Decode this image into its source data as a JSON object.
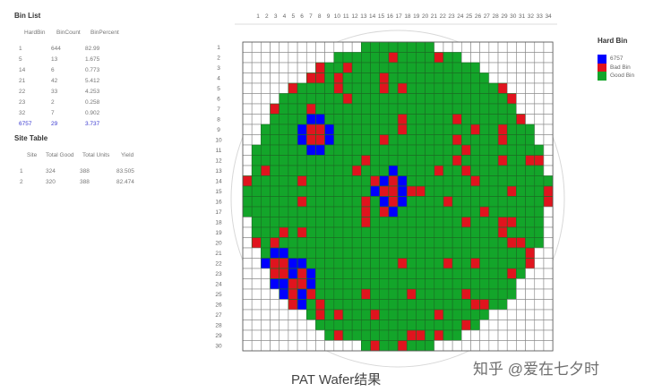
{
  "bin_list": {
    "title": "Bin List",
    "headers": [
      "HardBin",
      "BinCount",
      "BinPercent"
    ],
    "rows": [
      [
        "1",
        "644",
        "82.99"
      ],
      [
        "5",
        "13",
        "1.675"
      ],
      [
        "14",
        "6",
        "0.773"
      ],
      [
        "21",
        "42",
        "5.412"
      ],
      [
        "22",
        "33",
        "4.253"
      ],
      [
        "23",
        "2",
        "0.258"
      ],
      [
        "32",
        "7",
        "0.902"
      ],
      [
        "6757",
        "29",
        "3.737"
      ]
    ],
    "highlight_color": "#3a3ad0"
  },
  "site_table": {
    "title": "Site Table",
    "headers": [
      "Site",
      "Total Good",
      "Total Units",
      "Yield"
    ],
    "rows": [
      [
        "1",
        "324",
        "388",
        "83.505"
      ],
      [
        "2",
        "320",
        "388",
        "82.474"
      ]
    ]
  },
  "legend": {
    "title": "Hard Bin",
    "items": [
      {
        "label": "6757",
        "color": "#0000ff"
      },
      {
        "label": "Bad Bin",
        "color": "#e0141e"
      },
      {
        "label": "Good Bin",
        "color": "#13a52a"
      }
    ]
  },
  "wafer_map": {
    "columns": [
      "1",
      "2",
      "3",
      "4",
      "5",
      "6",
      "7",
      "8",
      "9",
      "10",
      "11",
      "12",
      "13",
      "14",
      "15",
      "16",
      "17",
      "18",
      "19",
      "20",
      "21",
      "22",
      "23",
      "24",
      "25",
      "26",
      "27",
      "28",
      "29",
      "30",
      "31",
      "32",
      "33",
      "34"
    ],
    "rows": [
      {
        "label": "1",
        "from": 14,
        "to": 21,
        "bad": [],
        "bin6757": []
      },
      {
        "label": "2",
        "from": 11,
        "to": 24,
        "bad": [
          17,
          22
        ],
        "bin6757": []
      },
      {
        "label": "3",
        "from": 9,
        "to": 26,
        "bad": [
          9,
          12
        ],
        "bin6757": []
      },
      {
        "label": "4",
        "from": 8,
        "to": 27,
        "bad": [
          8,
          9,
          11,
          16
        ],
        "bin6757": []
      },
      {
        "label": "5",
        "from": 6,
        "to": 29,
        "bad": [
          6,
          11,
          16,
          18,
          29
        ],
        "bin6757": []
      },
      {
        "label": "6",
        "from": 5,
        "to": 30,
        "bad": [
          12,
          30
        ],
        "bin6757": []
      },
      {
        "label": "7",
        "from": 4,
        "to": 30,
        "bad": [
          4,
          8
        ],
        "bin6757": []
      },
      {
        "label": "8",
        "from": 4,
        "to": 31,
        "bad": [
          18,
          24,
          31
        ],
        "bin6757": [
          8,
          9
        ]
      },
      {
        "label": "9",
        "from": 3,
        "to": 32,
        "bad": [
          8,
          9,
          18,
          26,
          29
        ],
        "bin6757": [
          7,
          10
        ]
      },
      {
        "label": "10",
        "from": 3,
        "to": 32,
        "bad": [
          8,
          9,
          16,
          24,
          29
        ],
        "bin6757": [
          7,
          10
        ]
      },
      {
        "label": "11",
        "from": 2,
        "to": 33,
        "bad": [
          25
        ],
        "bin6757": [
          8,
          9
        ]
      },
      {
        "label": "12",
        "from": 2,
        "to": 33,
        "bad": [
          14,
          24,
          29,
          32,
          33
        ],
        "bin6757": []
      },
      {
        "label": "13",
        "from": 2,
        "to": 33,
        "bad": [
          3,
          13,
          22,
          25
        ],
        "bin6757": [
          17
        ]
      },
      {
        "label": "14",
        "from": 1,
        "to": 34,
        "bad": [
          1,
          7,
          15,
          17,
          26
        ],
        "bin6757": [
          16,
          18
        ]
      },
      {
        "label": "15",
        "from": 1,
        "to": 34,
        "bad": [
          16,
          17,
          19,
          20,
          30,
          34
        ],
        "bin6757": [
          15,
          18
        ]
      },
      {
        "label": "16",
        "from": 1,
        "to": 34,
        "bad": [
          7,
          14,
          17,
          23,
          34
        ],
        "bin6757": [
          16,
          18
        ]
      },
      {
        "label": "17",
        "from": 1,
        "to": 33,
        "bad": [
          14,
          16,
          27
        ],
        "bin6757": [
          17
        ]
      },
      {
        "label": "18",
        "from": 2,
        "to": 33,
        "bad": [
          14,
          25,
          29,
          30
        ],
        "bin6757": []
      },
      {
        "label": "19",
        "from": 2,
        "to": 33,
        "bad": [
          5,
          7,
          29
        ],
        "bin6757": []
      },
      {
        "label": "20",
        "from": 2,
        "to": 33,
        "bad": [
          2,
          4,
          30,
          31
        ],
        "bin6757": []
      },
      {
        "label": "21",
        "from": 3,
        "to": 32,
        "bad": [
          32
        ],
        "bin6757": [
          4,
          5
        ]
      },
      {
        "label": "22",
        "from": 3,
        "to": 32,
        "bad": [
          4,
          5,
          18,
          23,
          26,
          32
        ],
        "bin6757": [
          3,
          6,
          7
        ]
      },
      {
        "label": "23",
        "from": 4,
        "to": 31,
        "bad": [
          4,
          5,
          7,
          30
        ],
        "bin6757": [
          6,
          8
        ]
      },
      {
        "label": "24",
        "from": 4,
        "to": 30,
        "bad": [
          6,
          7
        ],
        "bin6757": [
          4,
          5,
          8
        ]
      },
      {
        "label": "25",
        "from": 5,
        "to": 30,
        "bad": [
          6,
          8,
          14,
          19,
          25
        ],
        "bin6757": [
          5,
          7
        ]
      },
      {
        "label": "26",
        "from": 6,
        "to": 29,
        "bad": [
          6,
          9,
          26,
          27
        ],
        "bin6757": [
          7
        ]
      },
      {
        "label": "27",
        "from": 8,
        "to": 27,
        "bad": [
          9,
          11,
          15,
          22
        ],
        "bin6757": []
      },
      {
        "label": "28",
        "from": 9,
        "to": 26,
        "bad": [
          25
        ],
        "bin6757": []
      },
      {
        "label": "29",
        "from": 10,
        "to": 24,
        "bad": [
          11,
          19,
          20,
          22
        ],
        "bin6757": []
      },
      {
        "label": "30",
        "from": 14,
        "to": 21,
        "bad": [
          15,
          18
        ],
        "bin6757": []
      }
    ]
  },
  "caption": "PAT Wafer结果",
  "watermark": "知乎 @爱在七夕时"
}
